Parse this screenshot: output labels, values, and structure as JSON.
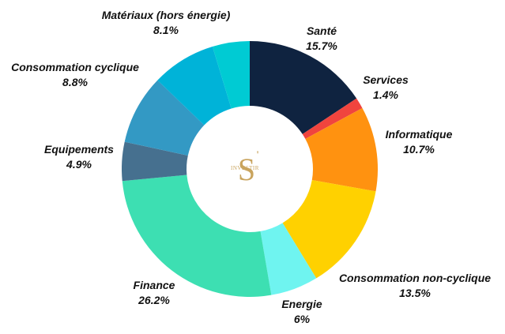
{
  "chart_data": {
    "type": "pie",
    "donut": true,
    "legend": "none",
    "start_angle_deg": 0,
    "slices": [
      {
        "label": "Santé",
        "value": 15.7,
        "display": "15.7%",
        "color": "#0f2340",
        "label_side": "right"
      },
      {
        "label": "Services",
        "value": 1.4,
        "display": "1.4%",
        "color": "#f0443e",
        "label_side": "right"
      },
      {
        "label": "Informatique",
        "value": 10.7,
        "display": "10.7%",
        "color": "#ff9210",
        "label_side": "right"
      },
      {
        "label": "Consommation non-cyclique",
        "value": 13.5,
        "display": "13.5%",
        "color": "#ffd100",
        "label_side": "right"
      },
      {
        "label": "Energie",
        "value": 6.0,
        "display": "6%",
        "color": "#6ff4f0",
        "label_side": "center"
      },
      {
        "label": "Finance",
        "value": 26.2,
        "display": "26.2%",
        "color": "#3ddfb2",
        "label_side": "left"
      },
      {
        "label": "Equipements",
        "value": 4.9,
        "display": "4.9%",
        "color": "#46708f",
        "label_side": "left"
      },
      {
        "label": "Consommation cyclique",
        "value": 8.8,
        "display": "8.8%",
        "color": "#3399c4",
        "label_side": "left"
      },
      {
        "label": "Matériaux (hors énergie)",
        "value": 8.1,
        "display": "8.1%",
        "color": "#00b3d8",
        "label_side": "center"
      },
      {
        "label": "",
        "value": 4.7,
        "display": "",
        "color": "#00cbd3",
        "label_side": "none"
      }
    ]
  },
  "logo": {
    "letter": "S",
    "mark": "'",
    "word": "INVESTIR",
    "color": "#c9a45e"
  }
}
